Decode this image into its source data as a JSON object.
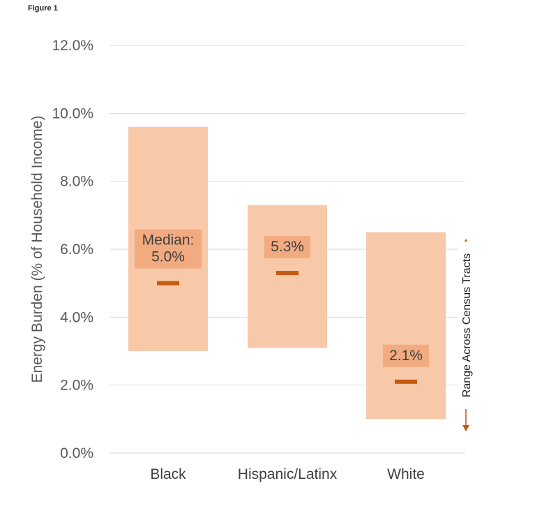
{
  "figure_label": "Figure 1",
  "colors": {
    "range_fill": "#f8c9a8",
    "label_fill": "#f2ab80",
    "median_mark": "#c55a11",
    "grid": "#d9d9d9",
    "arrow": "#c55a11"
  },
  "range_annotation": "Range Across Census Tracts",
  "chart_data": {
    "type": "range-bar",
    "ylabel": "Energy Burden (% of Household Income)",
    "xlabel": "",
    "ylim": [
      0,
      12
    ],
    "yticks": [
      "0.0%",
      "2.0%",
      "4.0%",
      "6.0%",
      "8.0%",
      "10.0%",
      "12.0%"
    ],
    "grid": true,
    "categories": [
      "Black",
      "Hispanic/Latinx",
      "White"
    ],
    "ranges": [
      {
        "category": "Black",
        "low": 3.0,
        "high": 9.6
      },
      {
        "category": "Hispanic/Latinx",
        "low": 3.1,
        "high": 7.3
      },
      {
        "category": "White",
        "low": 1.0,
        "high": 6.5
      }
    ],
    "medians": [
      5.0,
      5.3,
      2.1
    ],
    "median_labels": [
      [
        "Median:",
        "5.0%"
      ],
      [
        "5.3%"
      ],
      [
        "2.1%"
      ]
    ]
  }
}
